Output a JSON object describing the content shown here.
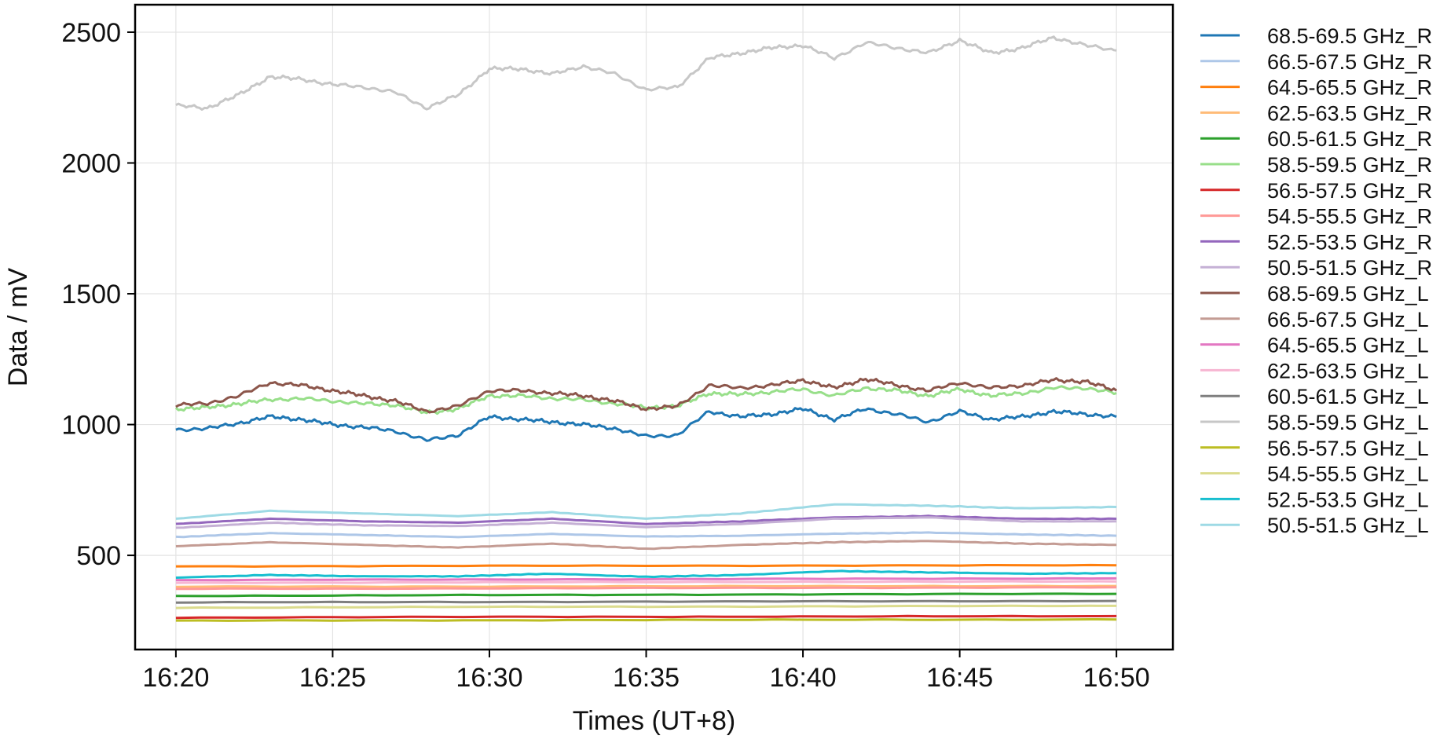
{
  "chart_data": {
    "type": "line",
    "xlabel": "Times (UT+8)",
    "ylabel": "Data / mV",
    "x_range": [
      "16:20",
      "16:50"
    ],
    "xlim": [
      -1.3,
      31.8
    ],
    "ylim": [
      140,
      2605
    ],
    "x_ticks": [
      {
        "t": 0,
        "label": "16:20"
      },
      {
        "t": 5,
        "label": "16:25"
      },
      {
        "t": 10,
        "label": "16:30"
      },
      {
        "t": 15,
        "label": "16:35"
      },
      {
        "t": 20,
        "label": "16:40"
      },
      {
        "t": 25,
        "label": "16:45"
      },
      {
        "t": 30,
        "label": "16:50"
      }
    ],
    "y_ticks": [
      {
        "v": 500,
        "label": "500"
      },
      {
        "v": 1000,
        "label": "1000"
      },
      {
        "v": 1500,
        "label": "1500"
      },
      {
        "v": 2000,
        "label": "2000"
      },
      {
        "v": 2500,
        "label": "2500"
      }
    ],
    "grid": true,
    "legend_position": "outside-right",
    "series": [
      {
        "name": "68.5-69.5 GHz_R",
        "color": "#1f77b4",
        "x": [
          0,
          1,
          2,
          3,
          4,
          5,
          6,
          7,
          8,
          9,
          10,
          11,
          12,
          13,
          14,
          15,
          16,
          17,
          18,
          19,
          20,
          21,
          22,
          23,
          24,
          25,
          26,
          27,
          28,
          29,
          30
        ],
        "y": [
          980,
          985,
          1005,
          1030,
          1020,
          1000,
          990,
          975,
          940,
          960,
          1030,
          1020,
          1010,
          1000,
          985,
          955,
          960,
          1050,
          1030,
          1040,
          1060,
          1020,
          1060,
          1040,
          1010,
          1050,
          1020,
          1030,
          1050,
          1040,
          1030
        ]
      },
      {
        "name": "66.5-67.5 GHz_R",
        "color": "#aec7e8",
        "x": [
          0,
          3,
          6,
          9,
          12,
          15,
          18,
          21,
          24,
          27,
          30
        ],
        "y": [
          570,
          585,
          578,
          570,
          582,
          572,
          575,
          583,
          587,
          580,
          575
        ]
      },
      {
        "name": "64.5-65.5 GHz_R",
        "color": "#ff7f0e",
        "x": [
          0,
          10,
          20,
          30
        ],
        "y": [
          458,
          460,
          461,
          462
        ]
      },
      {
        "name": "62.5-63.5 GHz_R",
        "color": "#ffbb78",
        "x": [
          0,
          10,
          20,
          30
        ],
        "y": [
          380,
          381,
          382,
          383
        ]
      },
      {
        "name": "60.5-61.5 GHz_R",
        "color": "#2ca02c",
        "x": [
          0,
          10,
          20,
          30
        ],
        "y": [
          345,
          348,
          351,
          353
        ]
      },
      {
        "name": "58.5-59.5 GHz_R",
        "color": "#98df8a",
        "x": [
          0,
          1,
          2,
          3,
          4,
          5,
          6,
          7,
          8,
          9,
          10,
          11,
          12,
          13,
          14,
          15,
          16,
          17,
          18,
          19,
          20,
          21,
          22,
          23,
          24,
          25,
          26,
          27,
          28,
          29,
          30
        ],
        "y": [
          1060,
          1065,
          1080,
          1095,
          1100,
          1090,
          1080,
          1075,
          1045,
          1060,
          1110,
          1110,
          1100,
          1095,
          1080,
          1065,
          1070,
          1120,
          1115,
          1125,
          1135,
          1110,
          1140,
          1130,
          1110,
          1135,
          1110,
          1120,
          1140,
          1140,
          1120
        ]
      },
      {
        "name": "56.5-57.5 GHz_R",
        "color": "#d62728",
        "x": [
          0,
          10,
          20,
          30
        ],
        "y": [
          262,
          265,
          266,
          268
        ]
      },
      {
        "name": "54.5-55.5 GHz_R",
        "color": "#ff9896",
        "x": [
          0,
          10,
          20,
          30
        ],
        "y": [
          372,
          374,
          376,
          378
        ]
      },
      {
        "name": "52.5-53.5 GHz_R",
        "color": "#9467bd",
        "x": [
          0,
          3,
          6,
          9,
          12,
          15,
          18,
          21,
          24,
          27,
          30
        ],
        "y": [
          620,
          640,
          630,
          625,
          640,
          620,
          630,
          645,
          650,
          640,
          640
        ]
      },
      {
        "name": "50.5-51.5 GHz_R",
        "color": "#c5b0d5",
        "x": [
          0,
          3,
          6,
          9,
          12,
          15,
          18,
          21,
          24,
          27,
          30
        ],
        "y": [
          605,
          625,
          615,
          612,
          625,
          608,
          620,
          640,
          645,
          630,
          630
        ]
      },
      {
        "name": "68.5-69.5 GHz_L",
        "color": "#8c564b",
        "x": [
          0,
          1,
          2,
          3,
          4,
          5,
          6,
          7,
          8,
          9,
          10,
          11,
          12,
          13,
          14,
          15,
          16,
          17,
          18,
          19,
          20,
          21,
          22,
          23,
          24,
          25,
          26,
          27,
          28,
          29,
          30
        ],
        "y": [
          1075,
          1080,
          1110,
          1160,
          1150,
          1130,
          1110,
          1090,
          1050,
          1070,
          1130,
          1130,
          1120,
          1110,
          1090,
          1060,
          1070,
          1150,
          1140,
          1150,
          1170,
          1140,
          1175,
          1150,
          1130,
          1160,
          1140,
          1150,
          1170,
          1165,
          1130
        ]
      },
      {
        "name": "66.5-67.5 GHz_L",
        "color": "#c49c94",
        "x": [
          0,
          3,
          6,
          9,
          12,
          15,
          18,
          21,
          24,
          27,
          30
        ],
        "y": [
          535,
          550,
          540,
          530,
          545,
          525,
          540,
          550,
          555,
          545,
          540
        ]
      },
      {
        "name": "64.5-65.5 GHz_L",
        "color": "#e377c2",
        "x": [
          0,
          10,
          20,
          30
        ],
        "y": [
          405,
          408,
          410,
          412
        ]
      },
      {
        "name": "62.5-63.5 GHz_L",
        "color": "#f7b6d2",
        "x": [
          0,
          10,
          20,
          30
        ],
        "y": [
          395,
          397,
          399,
          400
        ]
      },
      {
        "name": "60.5-61.5 GHz_L",
        "color": "#7f7f7f",
        "x": [
          0,
          10,
          20,
          30
        ],
        "y": [
          320,
          322,
          324,
          326
        ]
      },
      {
        "name": "58.5-59.5 GHz_L",
        "color": "#c7c7c7",
        "x": [
          0,
          1,
          2,
          3,
          4,
          5,
          6,
          7,
          8,
          9,
          10,
          11,
          12,
          13,
          14,
          15,
          16,
          17,
          18,
          19,
          20,
          21,
          22,
          23,
          24,
          25,
          26,
          27,
          28,
          29,
          30
        ],
        "y": [
          2220,
          2210,
          2260,
          2330,
          2320,
          2300,
          2290,
          2270,
          2210,
          2260,
          2360,
          2360,
          2340,
          2370,
          2340,
          2280,
          2290,
          2400,
          2420,
          2440,
          2450,
          2400,
          2460,
          2440,
          2420,
          2470,
          2420,
          2440,
          2480,
          2450,
          2430
        ]
      },
      {
        "name": "56.5-57.5 GHz_L",
        "color": "#bcbd22",
        "x": [
          0,
          10,
          20,
          30
        ],
        "y": [
          250,
          252,
          254,
          255
        ]
      },
      {
        "name": "54.5-55.5 GHz_L",
        "color": "#dbdb8d",
        "x": [
          0,
          10,
          20,
          30
        ],
        "y": [
          300,
          303,
          305,
          307
        ]
      },
      {
        "name": "52.5-53.5 GHz_L",
        "color": "#17becf",
        "x": [
          0,
          3,
          6,
          9,
          12,
          15,
          18,
          21,
          24,
          27,
          30
        ],
        "y": [
          415,
          425,
          420,
          420,
          430,
          418,
          425,
          440,
          435,
          430,
          432
        ]
      },
      {
        "name": "50.5-51.5 GHz_L",
        "color": "#9edae5",
        "x": [
          0,
          3,
          6,
          9,
          12,
          15,
          18,
          21,
          24,
          27,
          30
        ],
        "y": [
          640,
          670,
          660,
          650,
          665,
          640,
          660,
          695,
          690,
          680,
          685
        ]
      }
    ]
  }
}
